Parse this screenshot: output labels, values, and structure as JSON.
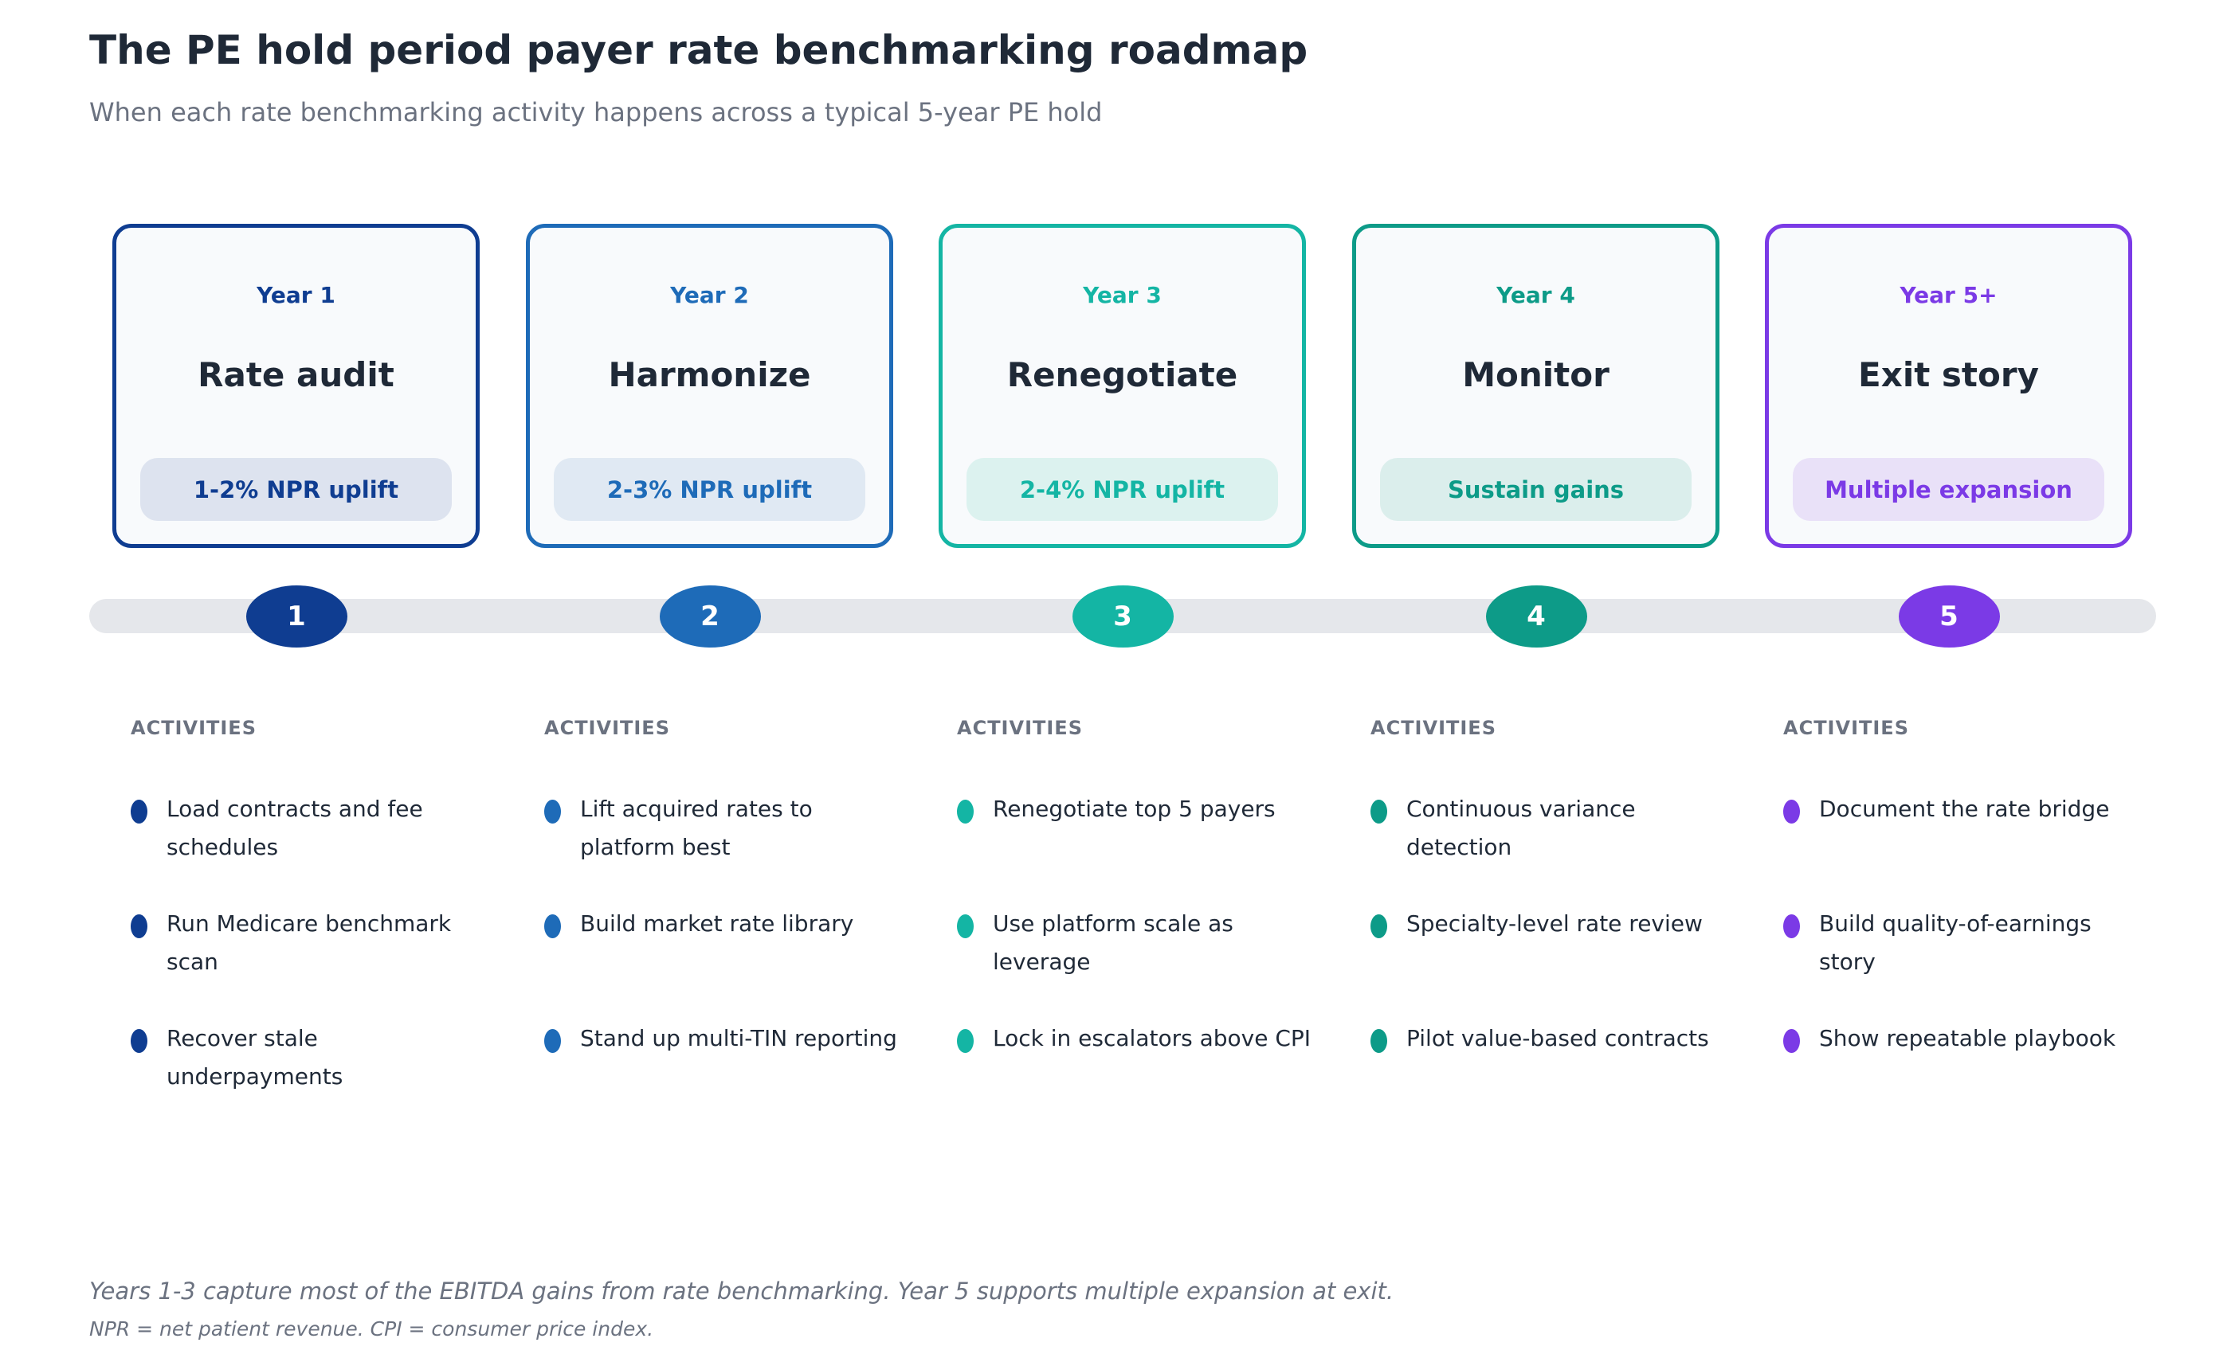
{
  "title": "The PE hold period payer rate benchmarking roadmap",
  "subtitle": "When each rate benchmarking activity happens across a typical 5-year PE hold",
  "phases": [
    {
      "year": "Year 1",
      "name": "Rate audit",
      "outcome": "1-2% NPR uplift",
      "step": "1",
      "color": "#0f3d91",
      "tint": "#dde3ef",
      "activities_label": "ACTIVITIES",
      "activities": [
        "Load contracts and fee schedules",
        "Run Medicare benchmark scan",
        "Recover stale underpayments"
      ]
    },
    {
      "year": "Year 2",
      "name": "Harmonize",
      "outcome": "2-3% NPR uplift",
      "step": "2",
      "color": "#1e6bb8",
      "tint": "#e0e9f3",
      "activities_label": "ACTIVITIES",
      "activities": [
        "Lift acquired rates to platform best",
        "Build market rate library",
        "Stand up multi-TIN reporting"
      ]
    },
    {
      "year": "Year 3",
      "name": "Renegotiate",
      "outcome": "2-4% NPR uplift",
      "step": "3",
      "color": "#14b5a4",
      "tint": "#dcf2ef",
      "activities_label": "ACTIVITIES",
      "activities": [
        "Renegotiate top 5 payers",
        "Use platform scale as leverage",
        "Lock in escalators above CPI"
      ]
    },
    {
      "year": "Year 4",
      "name": "Monitor",
      "outcome": "Sustain gains",
      "step": "4",
      "color": "#0d9b88",
      "tint": "#dbeeec",
      "activities_label": "ACTIVITIES",
      "activities": [
        "Continuous variance detection",
        "Specialty-level rate review",
        "Pilot value-based contracts"
      ]
    },
    {
      "year": "Year 5+",
      "name": "Exit story",
      "outcome": "Multiple expansion",
      "step": "5",
      "color": "#7b3ae6",
      "tint": "#e9e1f8",
      "activities_label": "ACTIVITIES",
      "activities": [
        "Document the rate bridge",
        "Build quality-of-earnings story",
        "Show repeatable playbook"
      ]
    }
  ],
  "footnote": "Years 1-3 capture most of the EBITDA gains from rate benchmarking. Year 5 supports multiple expansion at exit.",
  "definitions": "NPR = net patient revenue. CPI = consumer price index."
}
